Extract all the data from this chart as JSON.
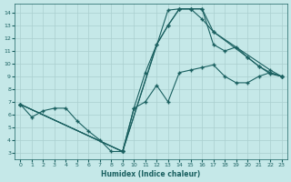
{
  "xlabel": "Humidex (Indice chaleur)",
  "bg_color": "#c5e8e8",
  "grid_color": "#aacfcf",
  "line_color": "#1a6060",
  "xlim": [
    -0.5,
    23.5
  ],
  "ylim": [
    2.5,
    14.7
  ],
  "yticks": [
    3,
    4,
    5,
    6,
    7,
    8,
    9,
    10,
    11,
    12,
    13,
    14
  ],
  "xticks": [
    0,
    1,
    2,
    3,
    4,
    5,
    6,
    7,
    8,
    9,
    10,
    11,
    12,
    13,
    14,
    15,
    16,
    17,
    18,
    19,
    20,
    21,
    22,
    23
  ],
  "line1_x": [
    0,
    1,
    2,
    3,
    4,
    5,
    6,
    7,
    8,
    9,
    10,
    11,
    12,
    13,
    14,
    15,
    16,
    17,
    18,
    19,
    20,
    21,
    22,
    23
  ],
  "line1_y": [
    6.8,
    5.8,
    6.3,
    6.5,
    6.5,
    5.5,
    4.7,
    4.0,
    3.1,
    3.1,
    6.5,
    7.0,
    8.3,
    7.0,
    9.3,
    9.5,
    9.7,
    9.9,
    9.0,
    8.5,
    8.5,
    9.0,
    9.3,
    9.0
  ],
  "line2_x": [
    0,
    9,
    13,
    14,
    15,
    16,
    17,
    22,
    23
  ],
  "line2_y": [
    6.8,
    3.1,
    14.2,
    14.3,
    14.3,
    13.5,
    12.5,
    9.5,
    9.0
  ],
  "line3_x": [
    0,
    9,
    12,
    13,
    14,
    15,
    16,
    17,
    20,
    21,
    22,
    23
  ],
  "line3_y": [
    6.8,
    3.1,
    11.5,
    13.0,
    14.3,
    14.3,
    14.3,
    12.5,
    10.5,
    9.8,
    9.2,
    9.0
  ],
  "line4_x": [
    0,
    9,
    10,
    11,
    12,
    13,
    14,
    15,
    16,
    17,
    18,
    19,
    20,
    21,
    22,
    23
  ],
  "line4_y": [
    6.8,
    3.1,
    6.5,
    9.3,
    11.5,
    13.0,
    14.3,
    14.3,
    14.3,
    11.5,
    11.0,
    11.3,
    10.5,
    9.8,
    9.3,
    9.0
  ]
}
